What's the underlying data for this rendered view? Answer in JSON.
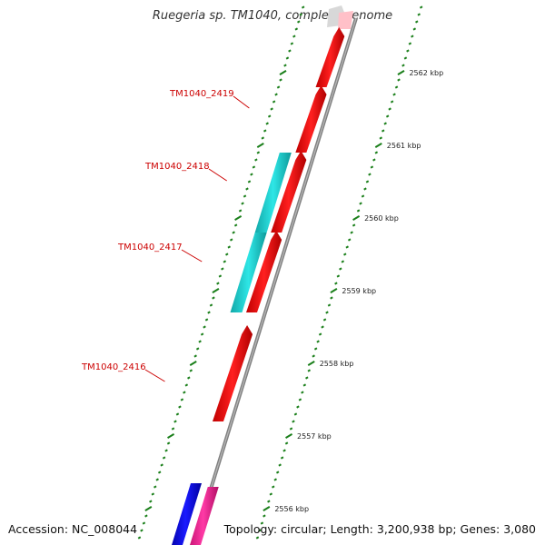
{
  "title": "Ruegeria sp. TM1040, complete genome",
  "footer": {
    "accession": "Accession: NC_008044",
    "summary": "Topology: circular; Length: 3,200,938 bp; Genes: 3,080"
  },
  "ticks": [
    {
      "label": "2556 kbp",
      "kbp": 2556
    },
    {
      "label": "2557 kbp",
      "kbp": 2557
    },
    {
      "label": "2558 kbp",
      "kbp": 2558
    },
    {
      "label": "2559 kbp",
      "kbp": 2559
    },
    {
      "label": "2560 kbp",
      "kbp": 2560
    },
    {
      "label": "2561 kbp",
      "kbp": 2561
    },
    {
      "label": "2562 kbp",
      "kbp": 2562
    }
  ],
  "genes": [
    {
      "label": "TM1040_2416",
      "start_kbp": 2557.2,
      "end_kbp": 2558.5,
      "strand": "forward",
      "color": "#ff0000"
    },
    {
      "label": "TM1040_2417",
      "start_kbp": 2558.7,
      "end_kbp": 2559.8,
      "strand": "forward",
      "color": "#ff0000"
    },
    {
      "label": "TM1040_2418",
      "start_kbp": 2559.8,
      "end_kbp": 2560.9,
      "strand": "forward",
      "color": "#ff0000"
    },
    {
      "label": "TM1040_2419",
      "start_kbp": 2560.9,
      "end_kbp": 2561.8,
      "strand": "forward",
      "color": "#ff0000"
    },
    {
      "label": "",
      "start_kbp": 2561.8,
      "end_kbp": 2562.6,
      "strand": "forward",
      "color": "#ff0000"
    }
  ],
  "cds_features": [
    {
      "start_kbp": 2558.7,
      "end_kbp": 2559.8,
      "color": "#1ad0d0"
    },
    {
      "start_kbp": 2559.8,
      "end_kbp": 2560.9,
      "color": "#1ad0d0"
    }
  ],
  "bottom_features": [
    {
      "color": "#0000ff"
    },
    {
      "color": "#ff1493"
    }
  ],
  "colors": {
    "backbone": "#808080",
    "tick": "#1a7f1a",
    "label": "#cc0000"
  }
}
